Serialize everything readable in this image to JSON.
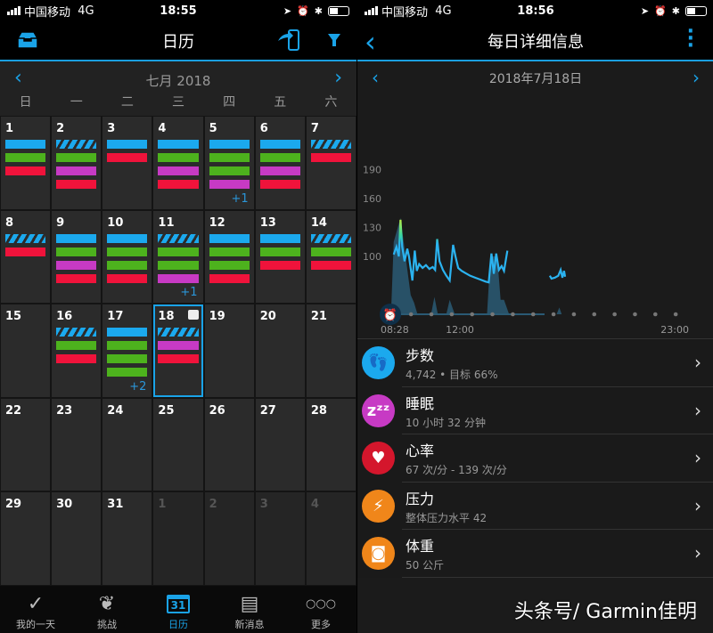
{
  "left": {
    "status": {
      "carrier": "中国移动",
      "network": "4G",
      "time": "18:55"
    },
    "header": {
      "title": "日历",
      "icons": [
        "inbox-icon",
        "send-to-device-icon",
        "filter-icon"
      ]
    },
    "month_label": "七月 2018",
    "weekdays": [
      "日",
      "一",
      "二",
      "三",
      "四",
      "五",
      "六"
    ],
    "bar_colors": {
      "b": "#1ba9ee",
      "s": "#1ba9ee striped",
      "g": "#4db21d",
      "m": "#c73ac4",
      "r": "#f0133b"
    },
    "days": [
      {
        "n": "1",
        "bars": "bgr"
      },
      {
        "n": "2",
        "bars": "sgmr"
      },
      {
        "n": "3",
        "bars": "br"
      },
      {
        "n": "4",
        "bars": "bgmr"
      },
      {
        "n": "5",
        "bars": "bggm",
        "more": "+1"
      },
      {
        "n": "6",
        "bars": "bgmr"
      },
      {
        "n": "7",
        "bars": "sr"
      },
      {
        "n": "8",
        "bars": "sr"
      },
      {
        "n": "9",
        "bars": "bgmr"
      },
      {
        "n": "10",
        "bars": "bggr"
      },
      {
        "n": "11",
        "bars": "sggm",
        "more": "+1"
      },
      {
        "n": "12",
        "bars": "bggr"
      },
      {
        "n": "13",
        "bars": "bgr"
      },
      {
        "n": "14",
        "bars": "sgr"
      },
      {
        "n": "15",
        "bars": ""
      },
      {
        "n": "16",
        "bars": "sgr"
      },
      {
        "n": "17",
        "bars": "bggg",
        "more": "+2"
      },
      {
        "n": "18",
        "bars": "smr",
        "selected": true,
        "weight_icon": true
      },
      {
        "n": "19",
        "bars": ""
      },
      {
        "n": "20",
        "bars": ""
      },
      {
        "n": "21",
        "bars": ""
      },
      {
        "n": "22",
        "bars": ""
      },
      {
        "n": "23",
        "bars": ""
      },
      {
        "n": "24",
        "bars": ""
      },
      {
        "n": "25",
        "bars": ""
      },
      {
        "n": "26",
        "bars": ""
      },
      {
        "n": "27",
        "bars": ""
      },
      {
        "n": "28",
        "bars": ""
      },
      {
        "n": "29",
        "bars": ""
      },
      {
        "n": "30",
        "bars": ""
      },
      {
        "n": "31",
        "bars": ""
      },
      {
        "n": "1",
        "bars": "",
        "dim": true
      },
      {
        "n": "2",
        "bars": "",
        "dim": true
      },
      {
        "n": "3",
        "bars": "",
        "dim": true
      },
      {
        "n": "4",
        "bars": "",
        "dim": true
      }
    ],
    "tabs": [
      {
        "label": "我的一天",
        "icon": "check-icon"
      },
      {
        "label": "挑战",
        "icon": "laurel-icon"
      },
      {
        "label": "日历",
        "icon": "calendar-icon",
        "active": true,
        "badge": "31"
      },
      {
        "label": "新消息",
        "icon": "news-icon"
      },
      {
        "label": "更多",
        "icon": "more-icon"
      }
    ]
  },
  "right": {
    "status": {
      "carrier": "中国移动",
      "network": "4G",
      "time": "18:56"
    },
    "header": {
      "title": "每日详细信息"
    },
    "date_label": "2018年7月18日",
    "items": [
      {
        "title": "步数",
        "sub": "4,742 • 目标 66%",
        "color": "#1ba9ee",
        "icon": "footsteps-icon"
      },
      {
        "title": "睡眠",
        "sub": "10 小时 32 分钟",
        "color": "#c73ac4",
        "icon": "sleep-icon"
      },
      {
        "title": "心率",
        "sub": "67 次/分 - 139 次/分",
        "color": "#d4162c",
        "icon": "heart-icon"
      },
      {
        "title": "压力",
        "sub": "整体压力水平 42",
        "color": "#f0861a",
        "icon": "stress-icon"
      },
      {
        "title": "体重",
        "sub": "50 公斤",
        "color": "#f0861a",
        "icon": "scale-icon"
      }
    ]
  },
  "watermark": "头条号/ Garmin佳明",
  "chart_data": {
    "type": "line",
    "yticks": [
      "190",
      "160",
      "130",
      "100"
    ],
    "ylim": [
      40,
      200
    ],
    "xtick_labels": [
      "08:28",
      "12:00",
      "23:00"
    ],
    "xlim": [
      "08:28",
      "23:00"
    ],
    "grid": false,
    "line_color": "#2bb3f0",
    "series": [
      {
        "points": [
          [
            "08:30",
            102
          ],
          [
            "08:38",
            110
          ],
          [
            "08:45",
            100
          ],
          [
            "08:50",
            138
          ],
          [
            "08:55",
            110
          ],
          [
            "09:02",
            95
          ],
          [
            "09:10",
            108
          ],
          [
            "09:15",
            100
          ],
          [
            "09:25",
            75
          ],
          [
            "09:32",
            106
          ],
          [
            "09:38",
            85
          ],
          [
            "09:45",
            92
          ],
          [
            "09:55",
            88
          ],
          [
            "10:05",
            91
          ],
          [
            "10:15",
            87
          ],
          [
            "10:25",
            89
          ],
          [
            "10:32",
            86
          ],
          [
            "10:38",
            118
          ],
          [
            "10:45",
            95
          ],
          [
            "10:55",
            86
          ],
          [
            "11:05",
            80
          ],
          [
            "11:15",
            75
          ],
          [
            "11:25",
            112
          ],
          [
            "11:32",
            100
          ],
          [
            "11:40",
            88
          ],
          [
            "11:50",
            85
          ],
          [
            "12:00",
            83
          ],
          [
            "12:15",
            80
          ],
          [
            "12:30",
            78
          ],
          [
            "12:45",
            76
          ],
          [
            "13:00",
            74
          ],
          [
            "13:10",
            73
          ],
          [
            "13:18",
            103
          ],
          [
            "13:25",
            82
          ],
          [
            "13:32",
            103
          ],
          [
            "13:40",
            86
          ],
          [
            "13:48",
            90
          ],
          [
            "13:55",
            85
          ],
          [
            "14:05",
            106
          ]
        ]
      },
      {
        "points": [
          [
            "16:10",
            80
          ],
          [
            "16:15",
            77
          ],
          [
            "16:25",
            78
          ],
          [
            "16:35",
            80
          ],
          [
            "16:42",
            86
          ],
          [
            "16:47",
            78
          ],
          [
            "16:52",
            85
          ],
          [
            "16:55",
            79
          ]
        ]
      }
    ],
    "stress_area": [
      [
        "08:22",
        40
      ],
      [
        "08:30",
        115
      ],
      [
        "08:50",
        140
      ],
      [
        "09:05",
        100
      ],
      [
        "09:20",
        60
      ],
      [
        "09:30",
        52
      ],
      [
        "09:40",
        40
      ],
      [
        "10:20",
        40
      ],
      [
        "10:30",
        58
      ],
      [
        "10:40",
        40
      ],
      [
        "11:05",
        40
      ],
      [
        "11:15",
        55
      ],
      [
        "11:30",
        40
      ],
      [
        "13:05",
        40
      ],
      [
        "13:15",
        100
      ],
      [
        "13:35",
        100
      ],
      [
        "13:45",
        55
      ],
      [
        "13:55",
        55
      ],
      [
        "14:10",
        40
      ],
      [
        "16:30",
        40
      ],
      [
        "16:38",
        47
      ],
      [
        "16:45",
        40
      ]
    ]
  }
}
